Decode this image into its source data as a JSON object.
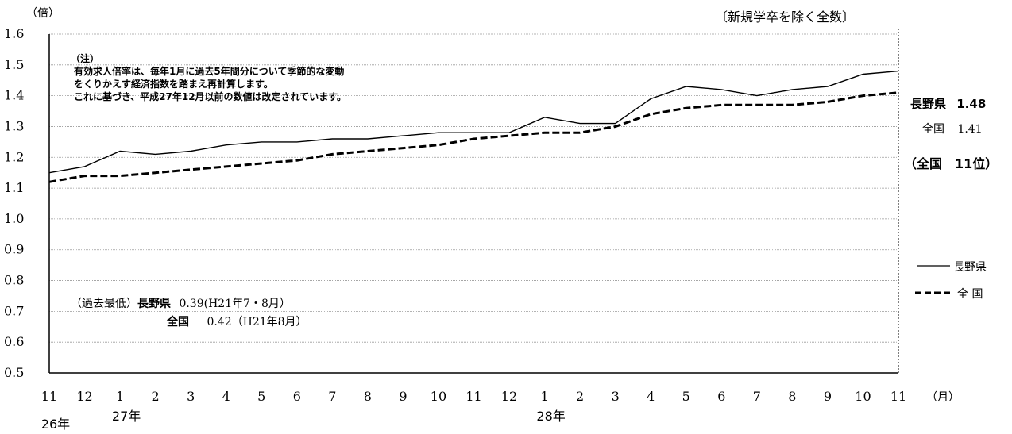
{
  "chart_data": {
    "type": "line",
    "ylabel": "（倍）",
    "xlabel": "（月）",
    "subtitle": "〔新規学卒を除く全数〕",
    "ylim": [
      0.5,
      1.6
    ],
    "yticks": [
      "0.5",
      "0.6",
      "0.7",
      "0.8",
      "0.9",
      "1.0",
      "1.1",
      "1.2",
      "1.3",
      "1.4",
      "1.5",
      "1.6"
    ],
    "categories": [
      "11",
      "12",
      "1",
      "2",
      "3",
      "4",
      "5",
      "6",
      "7",
      "8",
      "9",
      "10",
      "11",
      "12",
      "1",
      "2",
      "3",
      "4",
      "5",
      "6",
      "7",
      "8",
      "9",
      "10",
      "11"
    ],
    "year_labels": [
      {
        "index": 0,
        "label": "26年"
      },
      {
        "index": 2,
        "label": "27年"
      },
      {
        "index": 14,
        "label": "28年"
      }
    ],
    "series": [
      {
        "name": "長野県",
        "style": "solid",
        "color": "#000000",
        "values": [
          1.15,
          1.17,
          1.22,
          1.21,
          1.22,
          1.24,
          1.25,
          1.25,
          1.26,
          1.26,
          1.27,
          1.28,
          1.28,
          1.28,
          1.33,
          1.31,
          1.31,
          1.39,
          1.43,
          1.42,
          1.4,
          1.42,
          1.43,
          1.47,
          1.48
        ]
      },
      {
        "name": "全 国",
        "style": "dashed",
        "color": "#000000",
        "values": [
          1.12,
          1.14,
          1.14,
          1.15,
          1.16,
          1.17,
          1.18,
          1.19,
          1.21,
          1.22,
          1.23,
          1.24,
          1.26,
          1.27,
          1.28,
          1.28,
          1.3,
          1.34,
          1.36,
          1.37,
          1.37,
          1.37,
          1.38,
          1.4,
          1.41
        ]
      }
    ],
    "grid": true,
    "legend_position": "right"
  },
  "note": {
    "head": "（注）",
    "line1": "有効求人倍率は、毎年1月に過去5年間分について季節的な変動",
    "line2": "をくりかえす経済指数を踏まえ再計算します。",
    "line3": "これに基づき、平成27年12月以前の数値は改定されています。"
  },
  "latest": {
    "pref_label": "長野県",
    "pref_value": "1.48",
    "nat_label": "全国",
    "nat_value": "1.41",
    "rank_text": "（全国　11位）"
  },
  "history": {
    "prefix": "（過去最低）",
    "pref_label": "長野県",
    "pref_value": "0.39(H21年7・8月）",
    "nat_label": "全国",
    "nat_value": "0.42（H21年8月）"
  }
}
